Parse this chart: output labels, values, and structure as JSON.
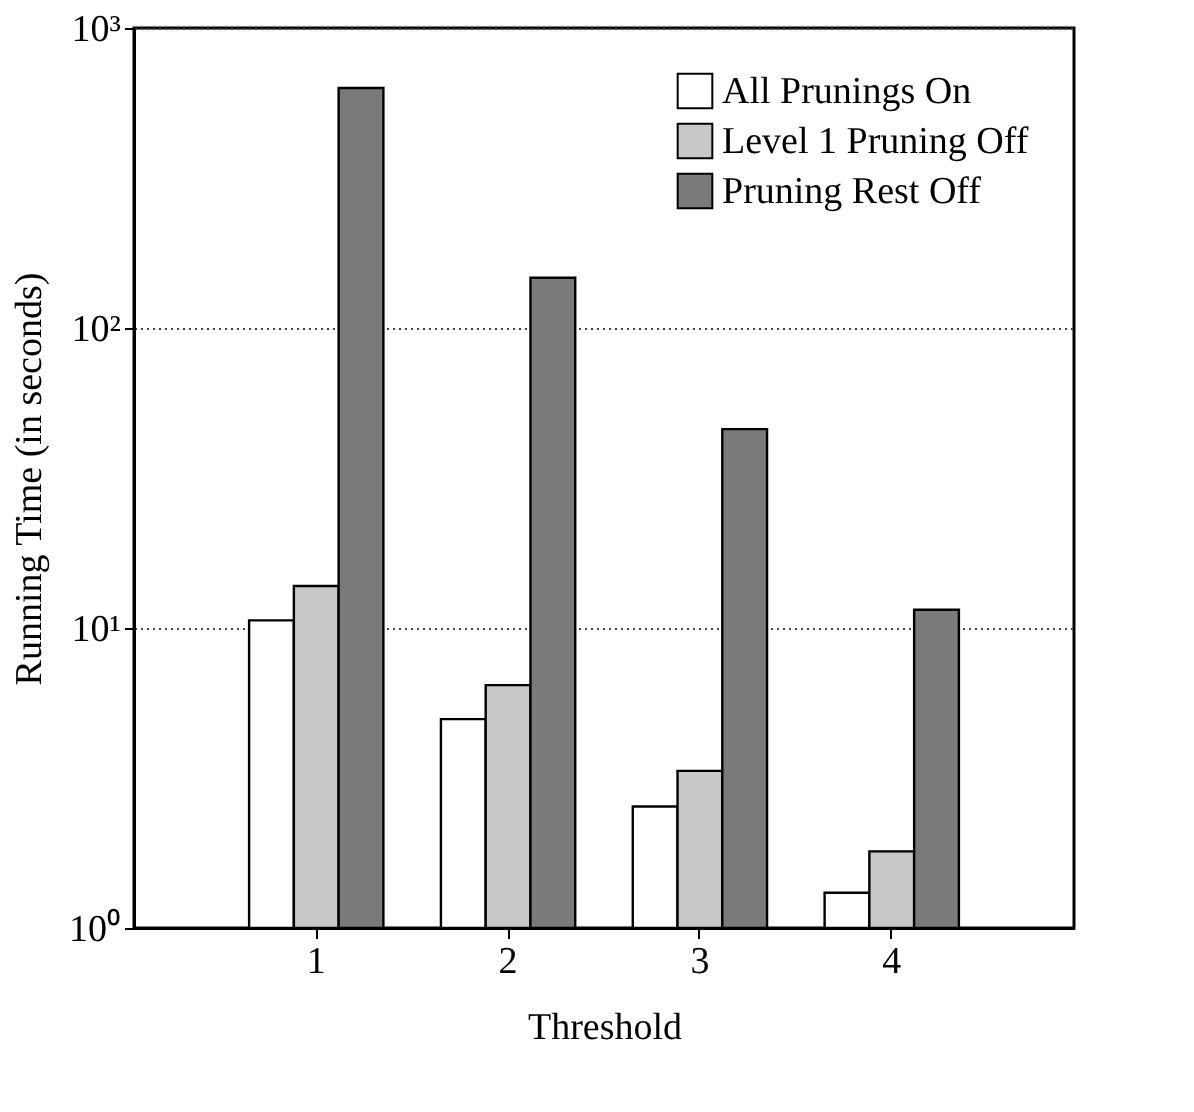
{
  "chart_data": {
    "type": "bar",
    "xlabel": "Threshold",
    "ylabel": "Running Time (in seconds)",
    "categories": [
      "1",
      "2",
      "3",
      "4"
    ],
    "series": [
      {
        "name": "All Prunings On",
        "color": "#ffffff",
        "values": [
          10.6,
          4.97,
          2.54,
          1.31
        ]
      },
      {
        "name": "Level 1 Pruning Off",
        "color": "#c8c8c8",
        "values": [
          13.8,
          6.45,
          3.34,
          1.8
        ]
      },
      {
        "name": "Pruning Rest Off",
        "color": "#7a7a7a",
        "values": [
          631,
          147,
          46,
          11.5
        ]
      }
    ],
    "log": true,
    "ylim": [
      1,
      1000
    ],
    "yticks": [
      {
        "value": 1,
        "label": "10⁰"
      },
      {
        "value": 10,
        "label": "10¹"
      },
      {
        "value": 100,
        "label": "10²"
      },
      {
        "value": 1000,
        "label": "10³"
      }
    ],
    "grid": "y",
    "legend": "top right"
  }
}
